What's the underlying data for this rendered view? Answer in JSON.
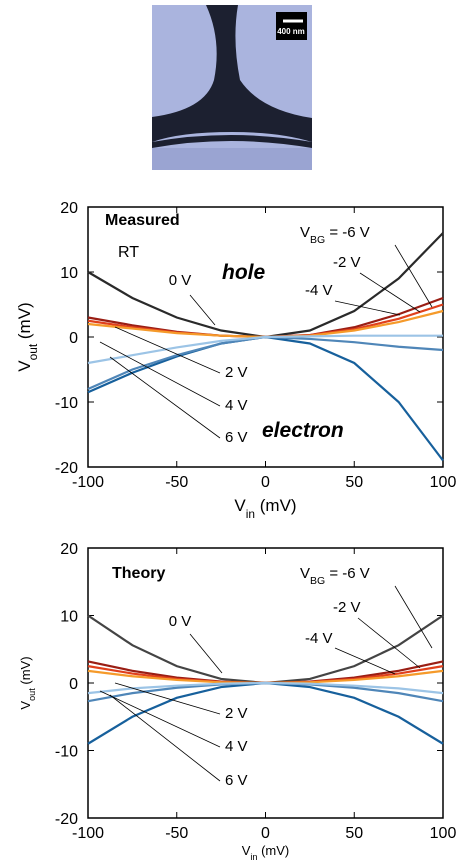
{
  "image": {
    "scale_bar": "400 nm"
  },
  "chart_data": [
    {
      "type": "line",
      "annotations": [
        {
          "text": "Measured",
          "style": "bold"
        },
        {
          "text": "RT",
          "style": "normal"
        },
        {
          "text": "hole",
          "style": "bold-italic",
          "color": "#1d5c9c"
        },
        {
          "text": "electron",
          "style": "bold-italic",
          "color": "#9c2414"
        }
      ],
      "label_prefix": {
        "main": "V",
        "sub": "BG",
        "rest": "="
      },
      "xlabel": {
        "main": "V",
        "sub": "in",
        "rest": "(mV)"
      },
      "ylabel": {
        "main": "V",
        "sub": "out",
        "rest": "(mV)"
      },
      "x": [
        -100,
        -75,
        -50,
        -25,
        0,
        25,
        50,
        75,
        100
      ],
      "series": [
        {
          "name": "0 V",
          "color": "#2a2a2a",
          "values": [
            10,
            6,
            3,
            1,
            0,
            1,
            4,
            9,
            16
          ]
        },
        {
          "name": "-2 V",
          "color": "#9a1e14",
          "values": [
            3,
            1.8,
            0.8,
            0.2,
            0,
            0.3,
            1.5,
            3.5,
            6
          ]
        },
        {
          "name": "-4 V",
          "color": "#e0401c",
          "values": [
            2.5,
            1.5,
            0.7,
            0.2,
            0,
            0.3,
            1.2,
            2.8,
            5
          ]
        },
        {
          "name": "-6 V",
          "color": "#f59a2a",
          "values": [
            2,
            1.3,
            0.6,
            0.2,
            0,
            0.2,
            1,
            2.3,
            4
          ]
        },
        {
          "name": "2 V",
          "color": "#17609c",
          "values": [
            -8.5,
            -5.5,
            -3,
            -1,
            0,
            -1,
            -4,
            -10,
            -19
          ]
        },
        {
          "name": "4 V",
          "color": "#4f86b8",
          "values": [
            -8,
            -5,
            -2.8,
            -1,
            0,
            -0.3,
            -0.8,
            -1.5,
            -2
          ]
        },
        {
          "name": "6 V",
          "color": "#9cc4e6",
          "values": [
            -4,
            -2.8,
            -1.6,
            -0.6,
            0,
            0.1,
            0.2,
            0.2,
            0.2
          ]
        }
      ],
      "xlim": [
        -100,
        100
      ],
      "ylim": [
        -20,
        20
      ],
      "xticks": [
        -100,
        -50,
        0,
        50,
        100
      ],
      "yticks": [
        -20,
        -10,
        0,
        10,
        20
      ]
    },
    {
      "type": "line",
      "annotations": [
        {
          "text": "Theory",
          "style": "bold"
        }
      ],
      "label_prefix": {
        "main": "V",
        "sub": "BG",
        "rest": "="
      },
      "xlabel": {
        "main": "V",
        "sub": "in",
        "rest": "(mV)"
      },
      "ylabel": {
        "main": "V",
        "sub": "out",
        "rest": "(mV)"
      },
      "x": [
        -100,
        -75,
        -50,
        -25,
        0,
        25,
        50,
        75,
        100
      ],
      "series": [
        {
          "name": "0 V",
          "color": "#444444",
          "values": [
            10,
            5.6,
            2.5,
            0.6,
            0,
            0.6,
            2.5,
            5.6,
            10
          ]
        },
        {
          "name": "-2 V",
          "color": "#9a1e14",
          "values": [
            3.2,
            1.8,
            0.8,
            0.2,
            0,
            0.2,
            0.8,
            1.8,
            3.2
          ]
        },
        {
          "name": "-4 V",
          "color": "#e0401c",
          "values": [
            2.5,
            1.4,
            0.6,
            0.15,
            0,
            0.15,
            0.6,
            1.4,
            2.5
          ]
        },
        {
          "name": "-6 V",
          "color": "#f59a2a",
          "values": [
            1.8,
            1,
            0.45,
            0.1,
            0,
            0.1,
            0.45,
            1,
            1.8
          ]
        },
        {
          "name": "2 V",
          "color": "#17609c",
          "values": [
            -9,
            -5,
            -2.2,
            -0.6,
            0,
            -0.6,
            -2.2,
            -5,
            -9
          ]
        },
        {
          "name": "4 V",
          "color": "#4f86b8",
          "values": [
            -2.7,
            -1.5,
            -0.7,
            -0.2,
            0,
            -0.2,
            -0.7,
            -1.5,
            -2.7
          ]
        },
        {
          "name": "6 V",
          "color": "#9cc4e6",
          "values": [
            -1.5,
            -0.8,
            -0.4,
            -0.1,
            0,
            -0.1,
            -0.4,
            -0.8,
            -1.5
          ]
        }
      ],
      "xlim": [
        -100,
        100
      ],
      "ylim": [
        -20,
        20
      ],
      "xticks": [
        -100,
        -50,
        0,
        50,
        100
      ],
      "yticks": [
        -20,
        -10,
        0,
        10,
        20
      ]
    }
  ]
}
